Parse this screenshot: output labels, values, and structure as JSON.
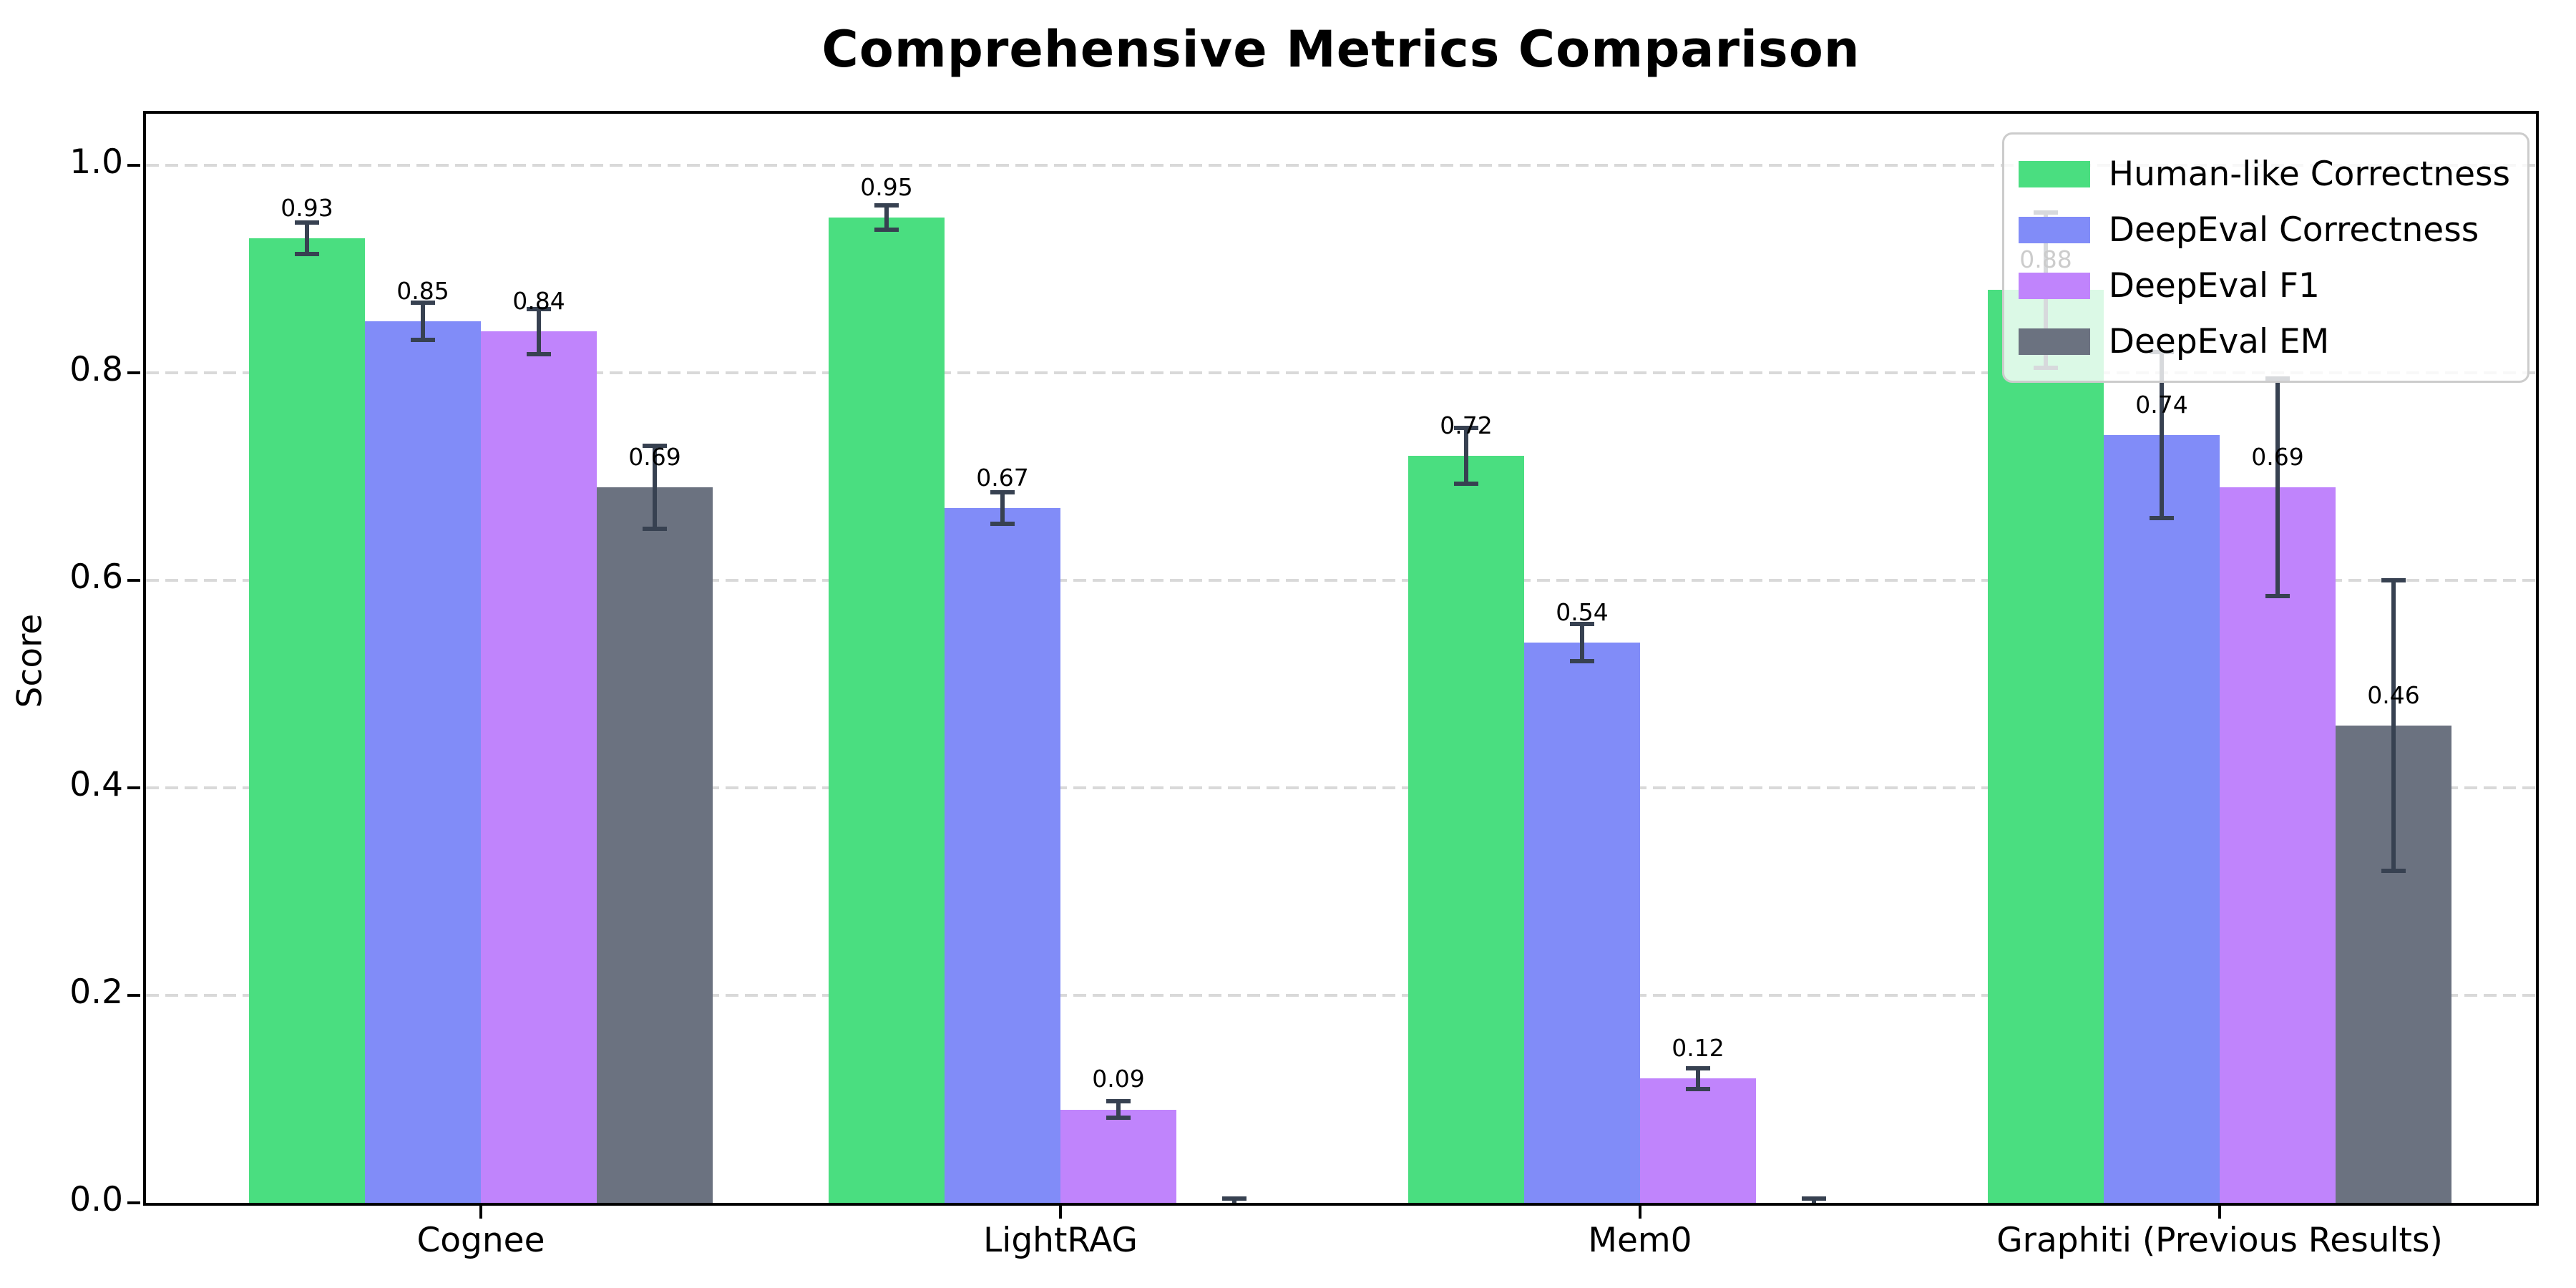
{
  "title": "Comprehensive Metrics Comparison",
  "axes": {
    "ylabel": "Score",
    "yticks": [
      "0.0",
      "0.2",
      "0.4",
      "0.6",
      "0.8",
      "1.0"
    ],
    "ytick_values": [
      0.0,
      0.2,
      0.4,
      0.6,
      0.8,
      1.0
    ]
  },
  "chart_data": {
    "type": "bar",
    "title": "Comprehensive Metrics Comparison",
    "xlabel": "",
    "ylabel": "Score",
    "ylim": [
      0,
      1.05
    ],
    "grid": "horizontal-dashed",
    "legend_position": "upper right",
    "categories": [
      "Cognee",
      "LightRAG",
      "Mem0",
      "Graphiti (Previous Results)"
    ],
    "series": [
      {
        "name": "Human-like Correctness",
        "color": "#4ade80",
        "values": [
          0.93,
          0.95,
          0.72,
          0.88
        ],
        "errors": [
          0.015,
          0.012,
          0.027,
          0.075
        ]
      },
      {
        "name": "DeepEval Correctness",
        "color": "#818cf8",
        "values": [
          0.85,
          0.67,
          0.54,
          0.74
        ],
        "errors": [
          0.018,
          0.015,
          0.018,
          0.08
        ]
      },
      {
        "name": "DeepEval F1",
        "color": "#c084fc",
        "values": [
          0.84,
          0.09,
          0.12,
          0.69
        ],
        "errors": [
          0.022,
          0.008,
          0.01,
          0.105
        ]
      },
      {
        "name": "DeepEval EM",
        "color": "#6b7280",
        "values": [
          0.69,
          0.0,
          0.0,
          0.46
        ],
        "errors": [
          0.04,
          0.004,
          0.004,
          0.14
        ]
      }
    ],
    "value_labels": [
      "0.93",
      "0.95",
      "0.72",
      "0.88",
      "0.85",
      "0.67",
      "0.54",
      "0.74",
      "0.84",
      "0.09",
      "0.12",
      "0.69",
      "0.69",
      "0.46"
    ],
    "colors": {
      "error_bar": "#374151",
      "grid": "#d9d9d9",
      "spine": "#000000",
      "legend_border": "#cccccc",
      "label_text": "#000000"
    }
  }
}
